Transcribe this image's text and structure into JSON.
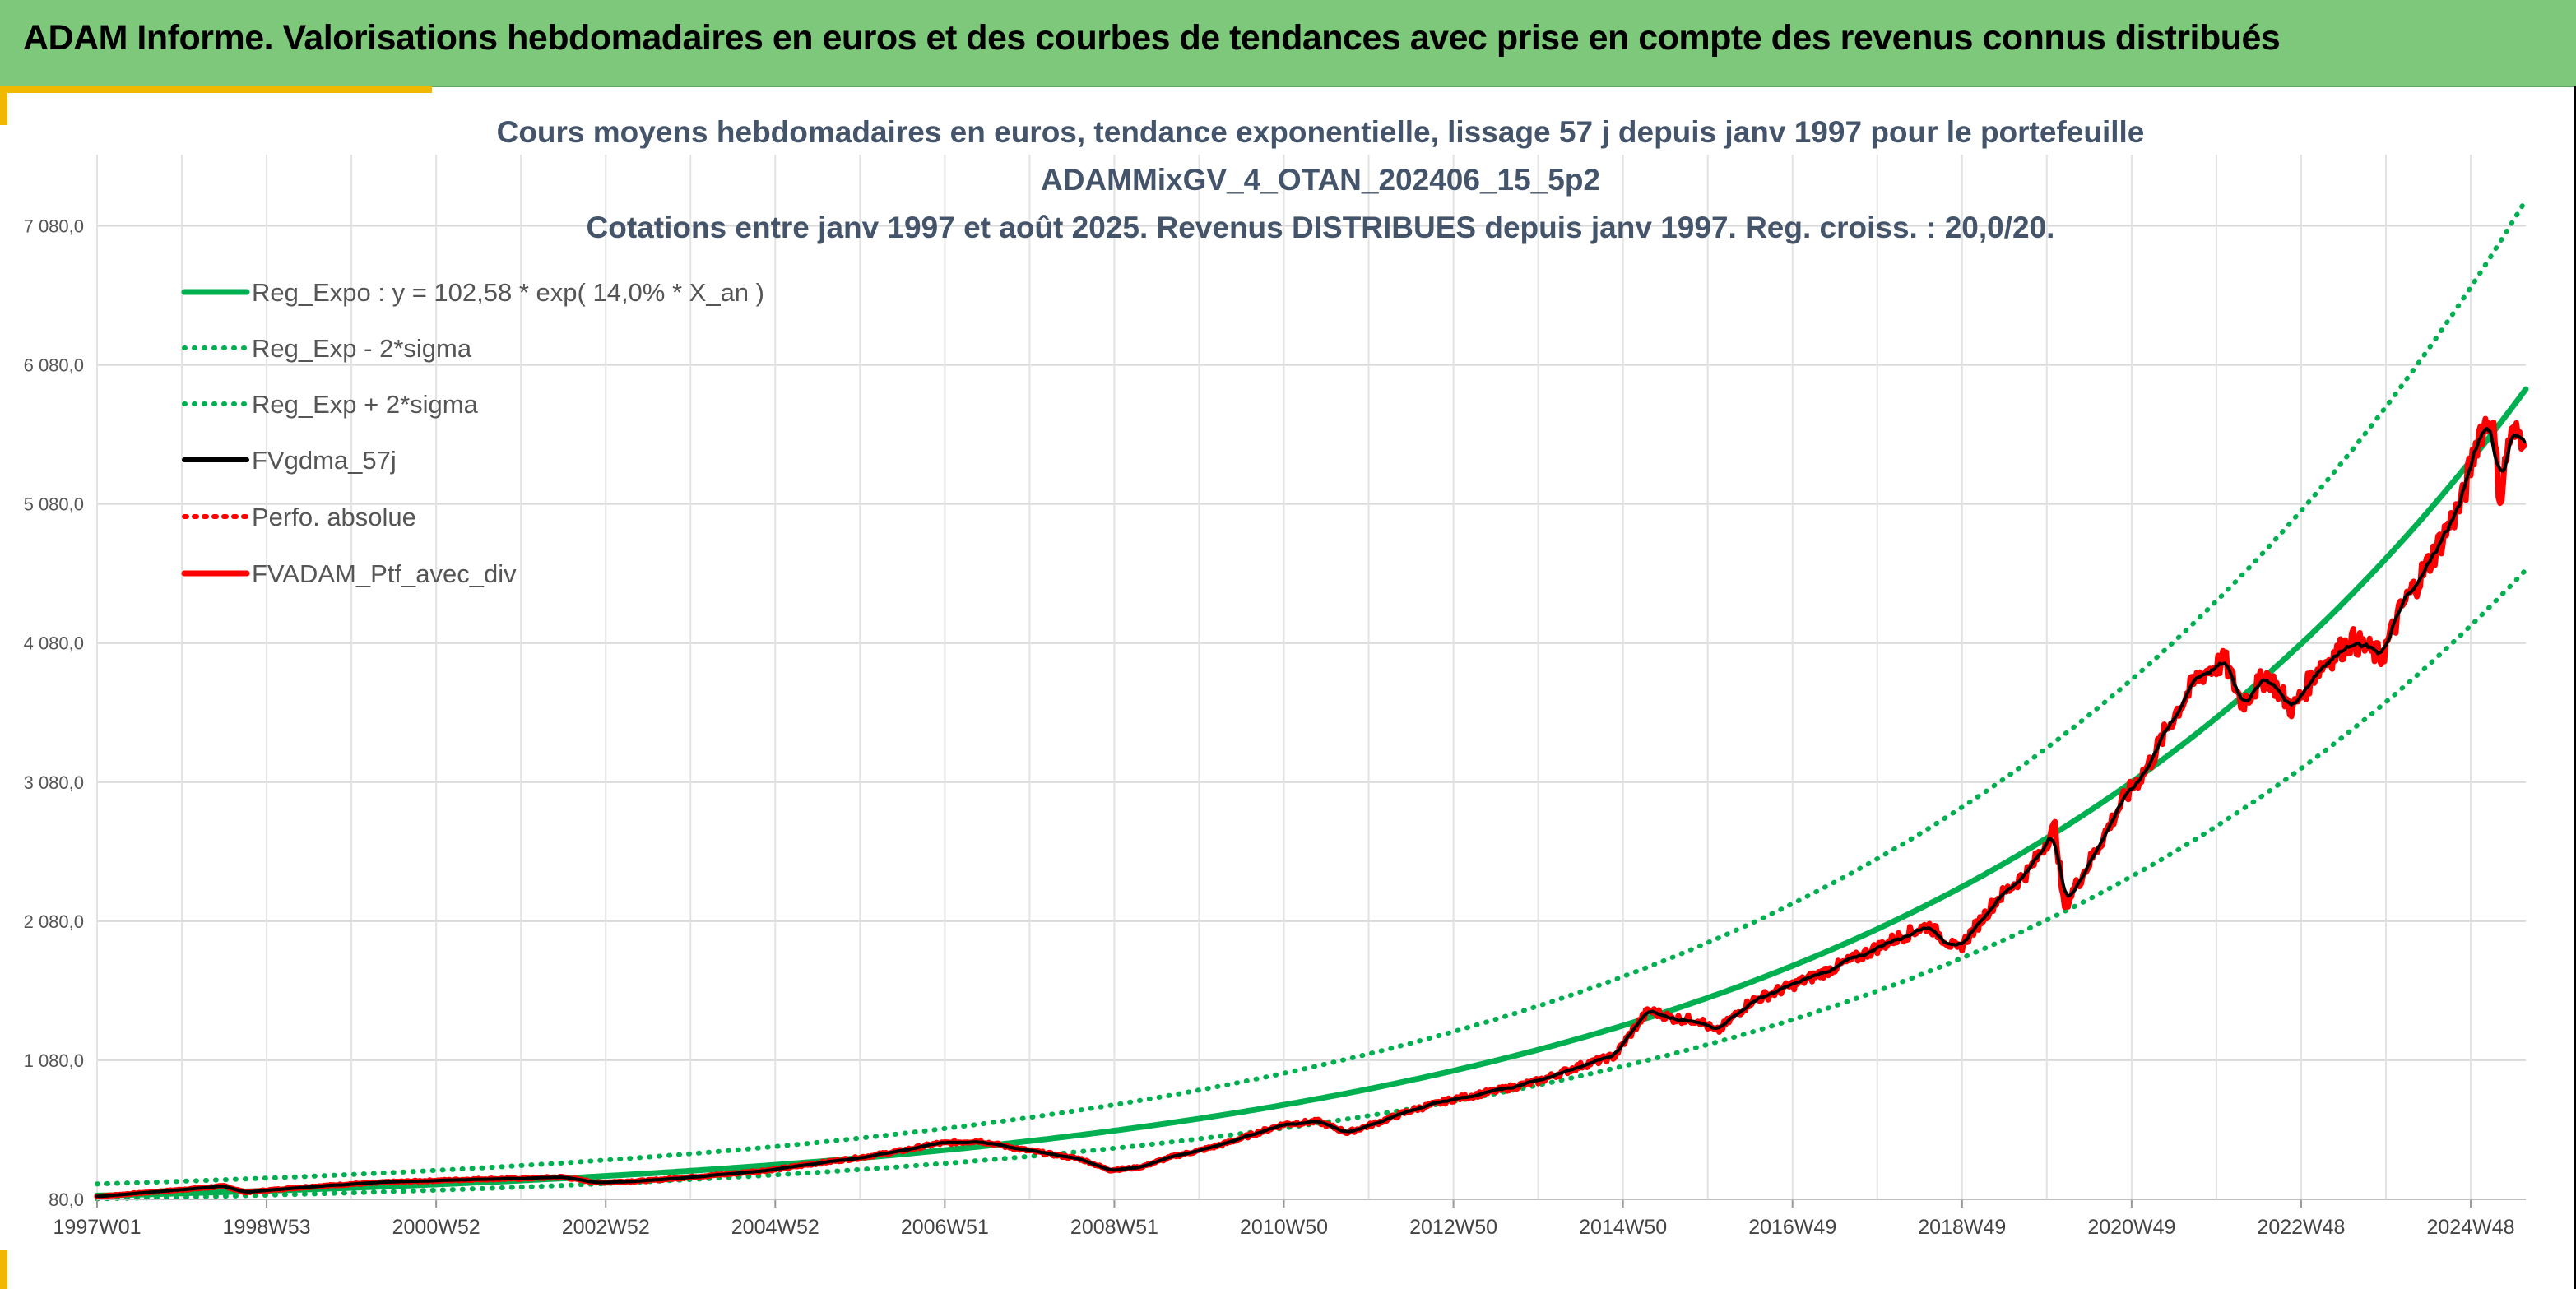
{
  "header": {
    "title": "ADAM Informe. Valorisations hebdomadaires en euros et des courbes de tendances avec prise en compte des revenus connus distribués"
  },
  "colors": {
    "header_bg": "#7dc87a",
    "reg_green": "#00b050",
    "fv_black": "#000000",
    "ptf_red": "#ff0000",
    "title_color": "#44546a",
    "accent_yellow": "#f0b800"
  },
  "chart_data": {
    "type": "line",
    "title": [
      "Cours moyens hebdomadaires en euros, tendance exponentielle, lissage 57 j depuis janv 1997 pour le portefeuille",
      "ADAMMixGV_4_OTAN_202406_15_5p2",
      "Cotations entre janv 1997 et août 2025. Revenus DISTRIBUES depuis janv 1997. Reg. croiss. : 20,0/20."
    ],
    "xlabel": "",
    "ylabel": "",
    "ylim": [
      80,
      7580
    ],
    "xlim": [
      1997.0,
      2025.65
    ],
    "yticks": [
      80,
      1080,
      2080,
      3080,
      4080,
      5080,
      6080,
      7080
    ],
    "ytick_labels": [
      "80,0",
      "1 080,0",
      "2 080,0",
      "3 080,0",
      "4 080,0",
      "5 080,0",
      "6 080,0",
      "7 080,0"
    ],
    "xtick_labels": [
      "1997W01",
      "1998W53",
      "2000W52",
      "2002W52",
      "2004W52",
      "2006W51",
      "2008W51",
      "2010W50",
      "2012W50",
      "2014W50",
      "2016W49",
      "2018W49",
      "2020W49",
      "2022W48",
      "2024W48"
    ],
    "grid": true,
    "legend_position": "top-left",
    "regression": {
      "a": 102.58,
      "rate": 0.14,
      "sigma_factor": 0.22
    },
    "series": [
      {
        "name": "Reg_Expo : y = 102,58 * exp( 14,0% *  X_an )",
        "style": "solid",
        "color": "#00b050",
        "formula": "reg"
      },
      {
        "name": "Reg_Exp - 2*sigma",
        "style": "dotted",
        "color": "#00b050",
        "formula": "reg_minus"
      },
      {
        "name": "Reg_Exp + 2*sigma",
        "style": "dotted",
        "color": "#00b050",
        "formula": "reg_plus"
      },
      {
        "name": "FVgdma_57j",
        "style": "solid",
        "color": "#000000",
        "formula": "smooth"
      },
      {
        "name": "Perfo. absolue",
        "style": "dotted",
        "color": "#ff0000",
        "formula": "ptf"
      },
      {
        "name": "FVADAM_Ptf_avec_div",
        "style": "solid",
        "color": "#ff0000",
        "formula": "ptf"
      }
    ],
    "portfolio_points": [
      [
        1997.0,
        100
      ],
      [
        1997.5,
        125
      ],
      [
        1998.0,
        150
      ],
      [
        1998.5,
        175
      ],
      [
        1998.75,
        130
      ],
      [
        1999.0,
        145
      ],
      [
        1999.5,
        170
      ],
      [
        2000.0,
        190
      ],
      [
        2000.5,
        205
      ],
      [
        2001.0,
        215
      ],
      [
        2001.5,
        225
      ],
      [
        2002.0,
        230
      ],
      [
        2002.5,
        240
      ],
      [
        2002.9,
        200
      ],
      [
        2003.5,
        215
      ],
      [
        2004.0,
        240
      ],
      [
        2004.5,
        265
      ],
      [
        2005.0,
        295
      ],
      [
        2005.5,
        340
      ],
      [
        2006.0,
        380
      ],
      [
        2006.5,
        430
      ],
      [
        2006.9,
        480
      ],
      [
        2007.4,
        500
      ],
      [
        2007.9,
        440
      ],
      [
        2008.3,
        400
      ],
      [
        2008.6,
        370
      ],
      [
        2008.95,
        290
      ],
      [
        2009.3,
        310
      ],
      [
        2009.7,
        390
      ],
      [
        2010.0,
        430
      ],
      [
        2010.3,
        480
      ],
      [
        2010.6,
        540
      ],
      [
        2011.0,
        620
      ],
      [
        2011.4,
        640
      ],
      [
        2011.75,
        560
      ],
      [
        2012.1,
        630
      ],
      [
        2012.5,
        720
      ],
      [
        2013.0,
        800
      ],
      [
        2013.5,
        860
      ],
      [
        2014.0,
        930
      ],
      [
        2014.5,
        1040
      ],
      [
        2014.9,
        1110
      ],
      [
        2015.1,
        1280
      ],
      [
        2015.3,
        1440
      ],
      [
        2015.6,
        1380
      ],
      [
        2015.9,
        1370
      ],
      [
        2016.1,
        1280
      ],
      [
        2016.5,
        1500
      ],
      [
        2017.0,
        1620
      ],
      [
        2017.4,
        1720
      ],
      [
        2017.8,
        1830
      ],
      [
        2018.2,
        1950
      ],
      [
        2018.6,
        2050
      ],
      [
        2018.95,
        1870
      ],
      [
        2019.4,
        2230
      ],
      [
        2019.8,
        2450
      ],
      [
        2020.1,
        2760
      ],
      [
        2020.2,
        2180
      ],
      [
        2020.5,
        2500
      ],
      [
        2020.9,
        2950
      ],
      [
        2021.2,
        3200
      ],
      [
        2021.5,
        3560
      ],
      [
        2021.8,
        3850
      ],
      [
        2022.1,
        3950
      ],
      [
        2022.3,
        3650
      ],
      [
        2022.6,
        3850
      ],
      [
        2022.9,
        3600
      ],
      [
        2023.2,
        3900
      ],
      [
        2023.6,
        4100
      ],
      [
        2023.95,
        3980
      ],
      [
        2024.2,
        4350
      ],
      [
        2024.5,
        4650
      ],
      [
        2024.9,
        5100
      ],
      [
        2025.1,
        5600
      ],
      [
        2025.25,
        5700
      ],
      [
        2025.35,
        5100
      ],
      [
        2025.45,
        5550
      ],
      [
        2025.6,
        5580
      ],
      [
        2025.65,
        5620
      ]
    ]
  }
}
